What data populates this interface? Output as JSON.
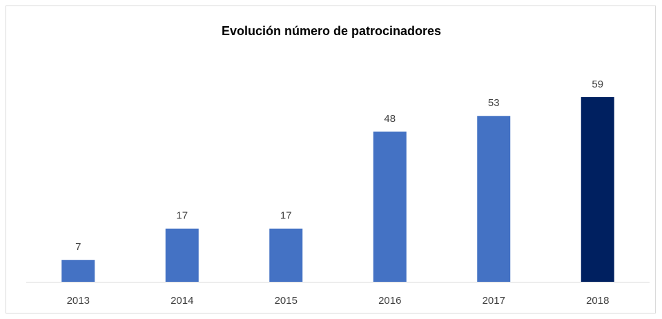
{
  "chart_data": {
    "type": "bar",
    "title": "Evolución número de patrocinadores",
    "categories": [
      "2013",
      "2014",
      "2015",
      "2016",
      "2017",
      "2018"
    ],
    "values": [
      7,
      17,
      17,
      48,
      53,
      59
    ],
    "colors": [
      "#4472c4",
      "#4472c4",
      "#4472c4",
      "#4472c4",
      "#4472c4",
      "#002060"
    ]
  }
}
